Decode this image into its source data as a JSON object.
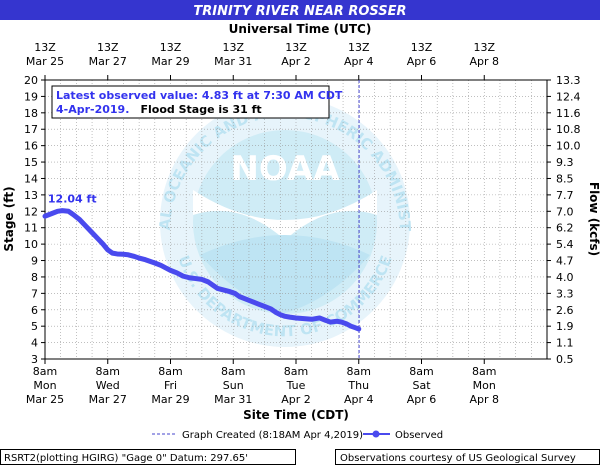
{
  "chart_data": {
    "type": "line",
    "title": "TRINITY RIVER NEAR ROSSER",
    "top_axis_title": "Universal Time (UTC)",
    "xlabel": "Site Time (CDT)",
    "ylabel": "Stage (ft)",
    "y2label": "Flow (kcfs)",
    "ylim": [
      3,
      20
    ],
    "y_ticks": [
      "3",
      "4",
      "5",
      "6",
      "7",
      "8",
      "9",
      "10",
      "11",
      "12",
      "13",
      "14",
      "15",
      "16",
      "17",
      "18",
      "19",
      "20"
    ],
    "y2_ticks": [
      "0.5",
      "1.1",
      "1.9",
      "2.6",
      "3.3",
      "4.0",
      "4.7",
      "5.4",
      "6.2",
      "7.0",
      "7.7",
      "8.5",
      "9.3",
      "10.0",
      "10.8",
      "11.6",
      "12.4",
      "13.3"
    ],
    "x_ticks_bottom": [
      {
        "time": "8am",
        "day": "Mon",
        "date": "Mar 25"
      },
      {
        "time": "8am",
        "day": "Wed",
        "date": "Mar 27"
      },
      {
        "time": "8am",
        "day": "Fri",
        "date": "Mar 29"
      },
      {
        "time": "8am",
        "day": "Sun",
        "date": "Mar 31"
      },
      {
        "time": "8am",
        "day": "Tue",
        "date": "Apr 2"
      },
      {
        "time": "8am",
        "day": "Thu",
        "date": "Apr 4"
      },
      {
        "time": "8am",
        "day": "Sat",
        "date": "Apr 6"
      },
      {
        "time": "8am",
        "day": "Mon",
        "date": "Apr 8"
      }
    ],
    "x_ticks_top": [
      {
        "time": "13Z",
        "date": "Mar 25"
      },
      {
        "time": "13Z",
        "date": "Mar 27"
      },
      {
        "time": "13Z",
        "date": "Mar 29"
      },
      {
        "time": "13Z",
        "date": "Mar 31"
      },
      {
        "time": "13Z",
        "date": "Apr 2"
      },
      {
        "time": "13Z",
        "date": "Apr 4"
      },
      {
        "time": "13Z",
        "date": "Apr 6"
      },
      {
        "time": "13Z",
        "date": "Apr 8"
      }
    ],
    "graph_created_day": 10.01,
    "series": [
      {
        "name": "Observed",
        "color": "#4a4aee",
        "points": [
          [
            0.0,
            11.7
          ],
          [
            0.2,
            11.85
          ],
          [
            0.4,
            12.0
          ],
          [
            0.55,
            12.04
          ],
          [
            0.75,
            12.0
          ],
          [
            0.9,
            11.8
          ],
          [
            1.1,
            11.5
          ],
          [
            1.3,
            11.1
          ],
          [
            1.5,
            10.7
          ],
          [
            1.7,
            10.3
          ],
          [
            1.85,
            10.0
          ],
          [
            2.0,
            9.65
          ],
          [
            2.15,
            9.45
          ],
          [
            2.3,
            9.4
          ],
          [
            2.5,
            9.38
          ],
          [
            2.65,
            9.35
          ],
          [
            2.85,
            9.25
          ],
          [
            3.0,
            9.15
          ],
          [
            3.2,
            9.05
          ],
          [
            3.35,
            8.95
          ],
          [
            3.5,
            8.85
          ],
          [
            3.7,
            8.7
          ],
          [
            3.85,
            8.55
          ],
          [
            4.0,
            8.4
          ],
          [
            4.2,
            8.25
          ],
          [
            4.4,
            8.05
          ],
          [
            4.6,
            7.95
          ],
          [
            4.8,
            7.9
          ],
          [
            5.0,
            7.85
          ],
          [
            5.2,
            7.7
          ],
          [
            5.35,
            7.5
          ],
          [
            5.5,
            7.3
          ],
          [
            5.7,
            7.2
          ],
          [
            5.9,
            7.1
          ],
          [
            6.05,
            7.0
          ],
          [
            6.2,
            6.8
          ],
          [
            6.4,
            6.65
          ],
          [
            6.6,
            6.5
          ],
          [
            6.8,
            6.35
          ],
          [
            7.0,
            6.2
          ],
          [
            7.2,
            6.05
          ],
          [
            7.35,
            5.85
          ],
          [
            7.5,
            5.7
          ],
          [
            7.65,
            5.6
          ],
          [
            7.8,
            5.55
          ],
          [
            8.0,
            5.5
          ],
          [
            8.3,
            5.45
          ],
          [
            8.5,
            5.42
          ],
          [
            8.75,
            5.5
          ],
          [
            8.95,
            5.35
          ],
          [
            9.1,
            5.25
          ],
          [
            9.3,
            5.3
          ],
          [
            9.45,
            5.25
          ],
          [
            9.6,
            5.15
          ],
          [
            9.75,
            5.0
          ],
          [
            9.9,
            4.9
          ],
          [
            10.0,
            4.83
          ]
        ]
      }
    ],
    "annotations": {
      "peak_label": "12.04 ft",
      "latest_line1": "Latest observed value: 4.83 ft at 7:30 AM CDT",
      "latest_line2a": "4-Apr-2019.",
      "latest_line2b": "Flood Stage is 31 ft"
    },
    "legend": {
      "graph_created": "Graph Created (8:18AM Apr 4,2019)",
      "observed": "Observed"
    },
    "grid": true
  },
  "footer": {
    "left": "RSRT2(plotting HGIRG) \"Gage 0\" Datum: 297.65'",
    "right": "Observations courtesy of US Geological Survey"
  },
  "watermark": {
    "logo_text": "NOAA",
    "ring_text": "NATIONAL OCEANIC AND ATMOSPHERIC ADMINISTRATION",
    "ring_bottom": "U.S. DEPARTMENT OF COMMERCE"
  },
  "colors": {
    "title_bar": "#3535cf",
    "series": "#4a4aee",
    "note_blue": "#3333ee",
    "watermark": "#bfe6f4"
  }
}
